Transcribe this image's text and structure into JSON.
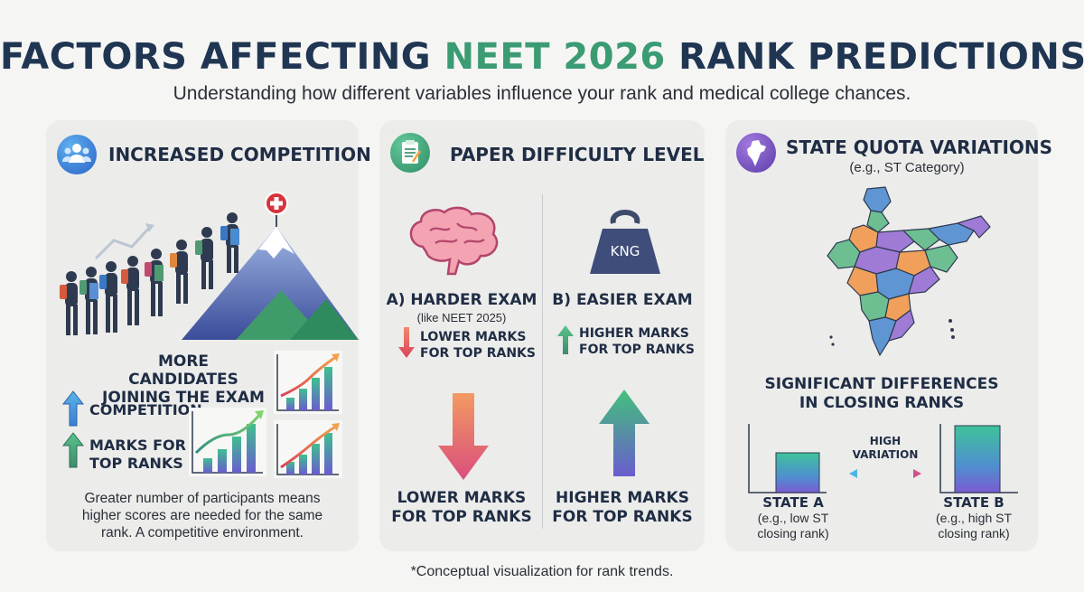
{
  "header": {
    "title_part1": "FACTORS AFFECTING ",
    "title_accent": "NEET 2026",
    "title_part2": " RANK PREDICTIONS",
    "subtitle": "Understanding how different variables influence your rank and medical college chances.",
    "accent_color": "#3b9b73"
  },
  "card_competition": {
    "icon": "people-group-icon",
    "title": "INCREASED COMPETITION",
    "heading_line1": "MORE CANDIDATES",
    "heading_line2": "JOINING THE EXAM",
    "item1": "COMPETITION",
    "item2_line1": "MARKS FOR",
    "item2_line2": "TOP RANKS",
    "desc_line1": "Greater number of participants means",
    "desc_line2": "higher scores are needed for the same",
    "desc_line3": "rank. A competitive environment."
  },
  "card_difficulty": {
    "icon": "clipboard-icon",
    "title": "PAPER DIFFICULTY LEVEL",
    "weight_label": "KNG",
    "harder_title": "A) HARDER EXAM",
    "harder_note": "(like NEET 2025)",
    "harder_item_line1": "LOWER MARKS",
    "harder_item_line2": "FOR TOP RANKS",
    "easier_title": "B) EASIER EXAM",
    "easier_item_line1": "HIGHER MARKS",
    "easier_item_line2": "FOR TOP RANKS",
    "bottom_left_line1": "LOWER MARKS",
    "bottom_left_line2": "FOR TOP RANKS",
    "bottom_right_line1": "HIGHER MARKS",
    "bottom_right_line2": "FOR TOP RANKS"
  },
  "card_state": {
    "icon": "india-map-icon",
    "title": "STATE QUOTA VARIATIONS",
    "title_note": "(e.g., ST Category)",
    "heading_line1": "SIGNIFICANT DIFFERENCES",
    "heading_line2": "IN CLOSING RANKS",
    "variation_line1": "HIGH",
    "variation_line2": "VARIATION",
    "state_a": "STATE A",
    "state_a_note_line1": "(e.g., low ST",
    "state_a_note_line2": "closing rank)",
    "state_b": "STATE B",
    "state_b_note_line1": "(e.g., high ST",
    "state_b_note_line2": "closing rank)"
  },
  "footer": "*Conceptual visualization for rank trends."
}
